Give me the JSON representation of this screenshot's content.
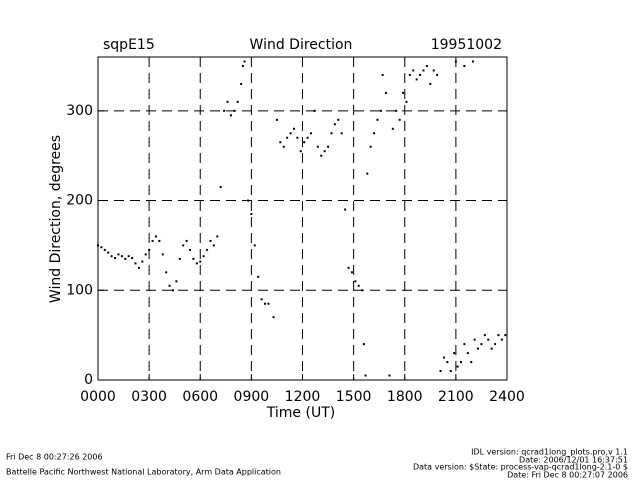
{
  "chart_data": {
    "type": "scatter",
    "title": "Wind Direction",
    "left_label": "sqpE15",
    "right_label": "19951002",
    "xlabel": "Time (UT)",
    "ylabel": "Wind Direction, degrees",
    "footer_left": [
      "Fri Dec  8 00:27:26 2006",
      "Battelle Pacific Northwest National Laboratory, Arm Data Application"
    ],
    "footer_right": [
      "IDL version: qcrad1long_plots.pro,v 1.1",
      "Date: 2006/12/01 16:37:51",
      "Data version: $State: process-vap-qcrad1long-2.1-0 $",
      "Date: Fri Dec  8 00:27:07 2006"
    ],
    "color": "#000000",
    "grid": true,
    "xlim": [
      0,
      24
    ],
    "xticks": [
      {
        "value": 0,
        "label": "0000"
      },
      {
        "value": 3,
        "label": "0300"
      },
      {
        "value": 6,
        "label": "0600"
      },
      {
        "value": 9,
        "label": "0900"
      },
      {
        "value": 12,
        "label": "1200"
      },
      {
        "value": 15,
        "label": "1500"
      },
      {
        "value": 18,
        "label": "1800"
      },
      {
        "value": 21,
        "label": "2100"
      },
      {
        "value": 24,
        "label": "2400"
      }
    ],
    "ylim": [
      0,
      360
    ],
    "yticks": [
      0,
      100,
      200,
      300
    ],
    "x": [
      0.0,
      0.2,
      0.4,
      0.6,
      0.8,
      1.0,
      1.2,
      1.4,
      1.6,
      1.8,
      2.0,
      2.2,
      2.4,
      2.6,
      2.8,
      3.0,
      3.2,
      3.4,
      3.6,
      3.8,
      4.0,
      4.2,
      4.4,
      4.6,
      4.8,
      5.0,
      5.2,
      5.4,
      5.6,
      5.8,
      6.0,
      6.2,
      6.4,
      6.6,
      6.8,
      7.0,
      7.2,
      7.4,
      7.6,
      7.8,
      8.0,
      8.2,
      8.4,
      8.5,
      8.6,
      8.8,
      9.0,
      9.2,
      9.4,
      9.6,
      9.8,
      10.0,
      10.3,
      10.5,
      10.7,
      10.9,
      11.1,
      11.3,
      11.5,
      11.7,
      11.9,
      12.1,
      12.3,
      12.5,
      12.7,
      12.9,
      13.1,
      13.3,
      13.5,
      13.7,
      13.9,
      14.1,
      14.3,
      14.5,
      14.7,
      14.9,
      15.1,
      15.3,
      15.5,
      15.6,
      15.7,
      15.8,
      16.0,
      16.2,
      16.4,
      16.6,
      16.7,
      16.9,
      17.1,
      17.3,
      17.5,
      17.7,
      17.9,
      18.1,
      18.3,
      18.5,
      18.7,
      18.9,
      19.1,
      19.3,
      19.5,
      19.7,
      19.9,
      20.1,
      20.3,
      20.5,
      20.7,
      20.9,
      21.0,
      21.1,
      21.3,
      21.5,
      21.5,
      21.7,
      21.9,
      22.0,
      22.1,
      22.3,
      22.5,
      22.7,
      22.9,
      23.1,
      23.3,
      23.5,
      23.7,
      23.9
    ],
    "values": [
      150,
      148,
      145,
      142,
      138,
      136,
      140,
      138,
      135,
      138,
      136,
      130,
      125,
      132,
      140,
      145,
      155,
      160,
      155,
      140,
      120,
      105,
      100,
      110,
      135,
      150,
      155,
      145,
      135,
      130,
      132,
      138,
      145,
      155,
      150,
      160,
      215,
      300,
      310,
      295,
      300,
      310,
      330,
      350,
      355,
      200,
      185,
      150,
      115,
      90,
      85,
      85,
      70,
      290,
      265,
      260,
      270,
      275,
      280,
      270,
      255,
      265,
      270,
      275,
      300,
      260,
      250,
      255,
      260,
      275,
      285,
      290,
      275,
      190,
      125,
      120,
      110,
      105,
      100,
      40,
      5,
      230,
      260,
      275,
      290,
      300,
      340,
      320,
      5,
      280,
      300,
      290,
      320,
      310,
      340,
      345,
      335,
      340,
      345,
      350,
      330,
      345,
      340,
      10,
      25,
      20,
      10,
      30,
      355,
      15,
      20,
      40,
      350,
      30,
      20,
      355,
      45,
      35,
      40,
      50,
      45,
      35,
      40,
      50,
      45,
      50
    ]
  }
}
